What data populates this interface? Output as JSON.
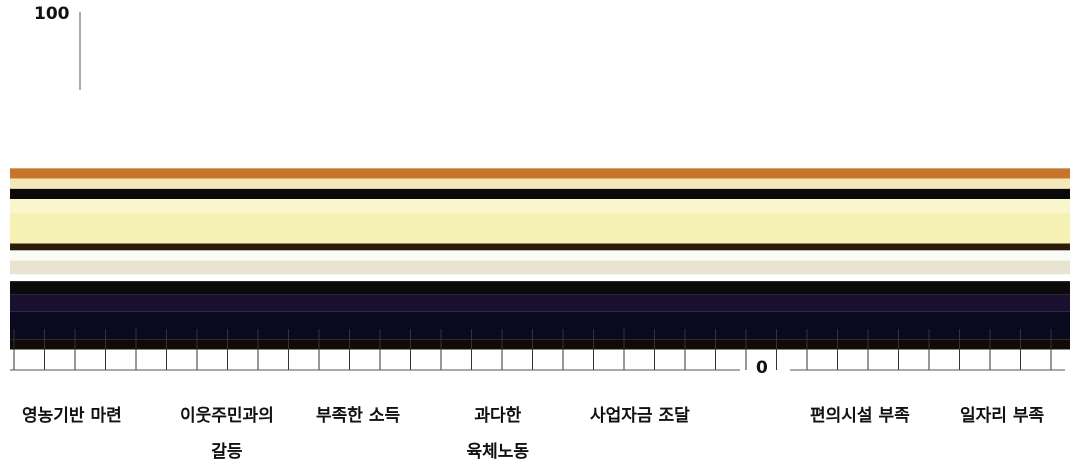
{
  "chart_data": {
    "type": "area",
    "ylim": [
      0,
      100
    ],
    "y_tick_labels": [
      "100",
      "0"
    ],
    "categories": [
      {
        "line1": "영농기반 마련",
        "line2": ""
      },
      {
        "line1": "이웃주민과의",
        "line2": "갈등"
      },
      {
        "line1": "부족한 소득",
        "line2": ""
      },
      {
        "line1": "과다한",
        "line2": "육체노동"
      },
      {
        "line1": "사업자금 조달",
        "line2": ""
      },
      {
        "line1": "편의시설 부족",
        "line2": ""
      },
      {
        "line1": "일자리 부족",
        "line2": ""
      }
    ],
    "bands": [
      {
        "from": 0,
        "to": 6,
        "color": "#ffffff"
      },
      {
        "from": 6,
        "to": 9,
        "color": "#120a06"
      },
      {
        "from": 9,
        "to": 17,
        "color": "#0a0a1e"
      },
      {
        "from": 17,
        "to": 22,
        "color": "#1a1030"
      },
      {
        "from": 22,
        "to": 26,
        "color": "#0b0b0b"
      },
      {
        "from": 26,
        "to": 28,
        "color": "#ffffff"
      },
      {
        "from": 28,
        "to": 32,
        "color": "#e9e4d2"
      },
      {
        "from": 32,
        "to": 35,
        "color": "#fbfbf5"
      },
      {
        "from": 35,
        "to": 37,
        "color": "#2a1a0a"
      },
      {
        "from": 37,
        "to": 46,
        "color": "#f6f2b4"
      },
      {
        "from": 46,
        "to": 50,
        "color": "#f9f6ce"
      },
      {
        "from": 50,
        "to": 53,
        "color": "#0a0a0a"
      },
      {
        "from": 53,
        "to": 56,
        "color": "#f4e7b8"
      },
      {
        "from": 56,
        "to": 59,
        "color": "#c8742a"
      },
      {
        "from": 59,
        "to": 61,
        "color": "#ffffff"
      }
    ],
    "colors": {
      "axis": "#555555",
      "text": "#111111"
    }
  }
}
